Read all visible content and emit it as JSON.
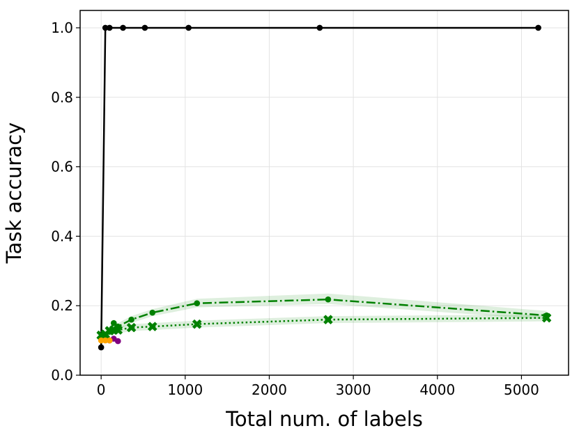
{
  "chart_data": {
    "type": "line",
    "xlabel": "Total num. of labels",
    "ylabel": "Task accuracy",
    "xlim": [
      -250,
      5560
    ],
    "ylim": [
      0.0,
      1.05
    ],
    "grid": true,
    "x_ticks": [
      0,
      1000,
      2000,
      3000,
      4000,
      5000
    ],
    "x_tick_labels": [
      "0",
      "1000",
      "2000",
      "3000",
      "4000",
      "5000"
    ],
    "y_ticks": [
      0.0,
      0.2,
      0.4,
      0.6,
      0.8,
      1.0
    ],
    "y_tick_labels": [
      "0.0",
      "0.2",
      "0.4",
      "0.6",
      "0.8",
      "1.0"
    ],
    "series": [
      {
        "color": "#000000",
        "line_style": "solid",
        "marker": "circle",
        "points": [
          [
            0,
            0.08
          ],
          [
            50,
            1.0
          ],
          [
            100,
            1.0
          ],
          [
            260,
            1.0
          ],
          [
            520,
            1.0
          ],
          [
            1040,
            1.0
          ],
          [
            2600,
            1.0
          ],
          [
            5200,
            1.0
          ]
        ]
      },
      {
        "color": "#008000",
        "line_style": "dashdot",
        "marker": "circle",
        "band": true,
        "points": [
          [
            0,
            0.105
          ],
          [
            50,
            0.115
          ],
          [
            100,
            0.125
          ],
          [
            150,
            0.15
          ],
          [
            200,
            0.14
          ],
          [
            360,
            0.16
          ],
          [
            610,
            0.18
          ],
          [
            1140,
            0.207
          ],
          [
            2700,
            0.218
          ],
          [
            5300,
            0.172
          ]
        ],
        "band_upper": [
          0.115,
          0.125,
          0.135,
          0.16,
          0.15,
          0.17,
          0.19,
          0.22,
          0.235,
          0.185
        ],
        "band_lower": [
          0.095,
          0.105,
          0.115,
          0.14,
          0.13,
          0.15,
          0.17,
          0.195,
          0.205,
          0.16
        ]
      },
      {
        "color": "#008000",
        "line_style": "dotted",
        "marker": "x-filled",
        "band": true,
        "points": [
          [
            0,
            0.115
          ],
          [
            50,
            0.118
          ],
          [
            100,
            0.128
          ],
          [
            150,
            0.13
          ],
          [
            200,
            0.13
          ],
          [
            360,
            0.137
          ],
          [
            610,
            0.14
          ],
          [
            1140,
            0.147
          ],
          [
            2700,
            0.16
          ],
          [
            5300,
            0.165
          ]
        ],
        "band_upper": [
          0.125,
          0.128,
          0.138,
          0.14,
          0.14,
          0.147,
          0.15,
          0.157,
          0.17,
          0.175
        ],
        "band_lower": [
          0.105,
          0.108,
          0.118,
          0.12,
          0.12,
          0.127,
          0.13,
          0.137,
          0.15,
          0.155
        ]
      },
      {
        "color": "#800080",
        "line_style": "solid",
        "marker": "circle",
        "points": [
          [
            100,
            0.1
          ],
          [
            150,
            0.105
          ],
          [
            200,
            0.098
          ]
        ]
      },
      {
        "color": "#ffa500",
        "line_style": "solid",
        "marker": "circle",
        "points": [
          [
            0,
            0.1
          ],
          [
            50,
            0.1
          ],
          [
            100,
            0.1
          ]
        ]
      }
    ]
  }
}
